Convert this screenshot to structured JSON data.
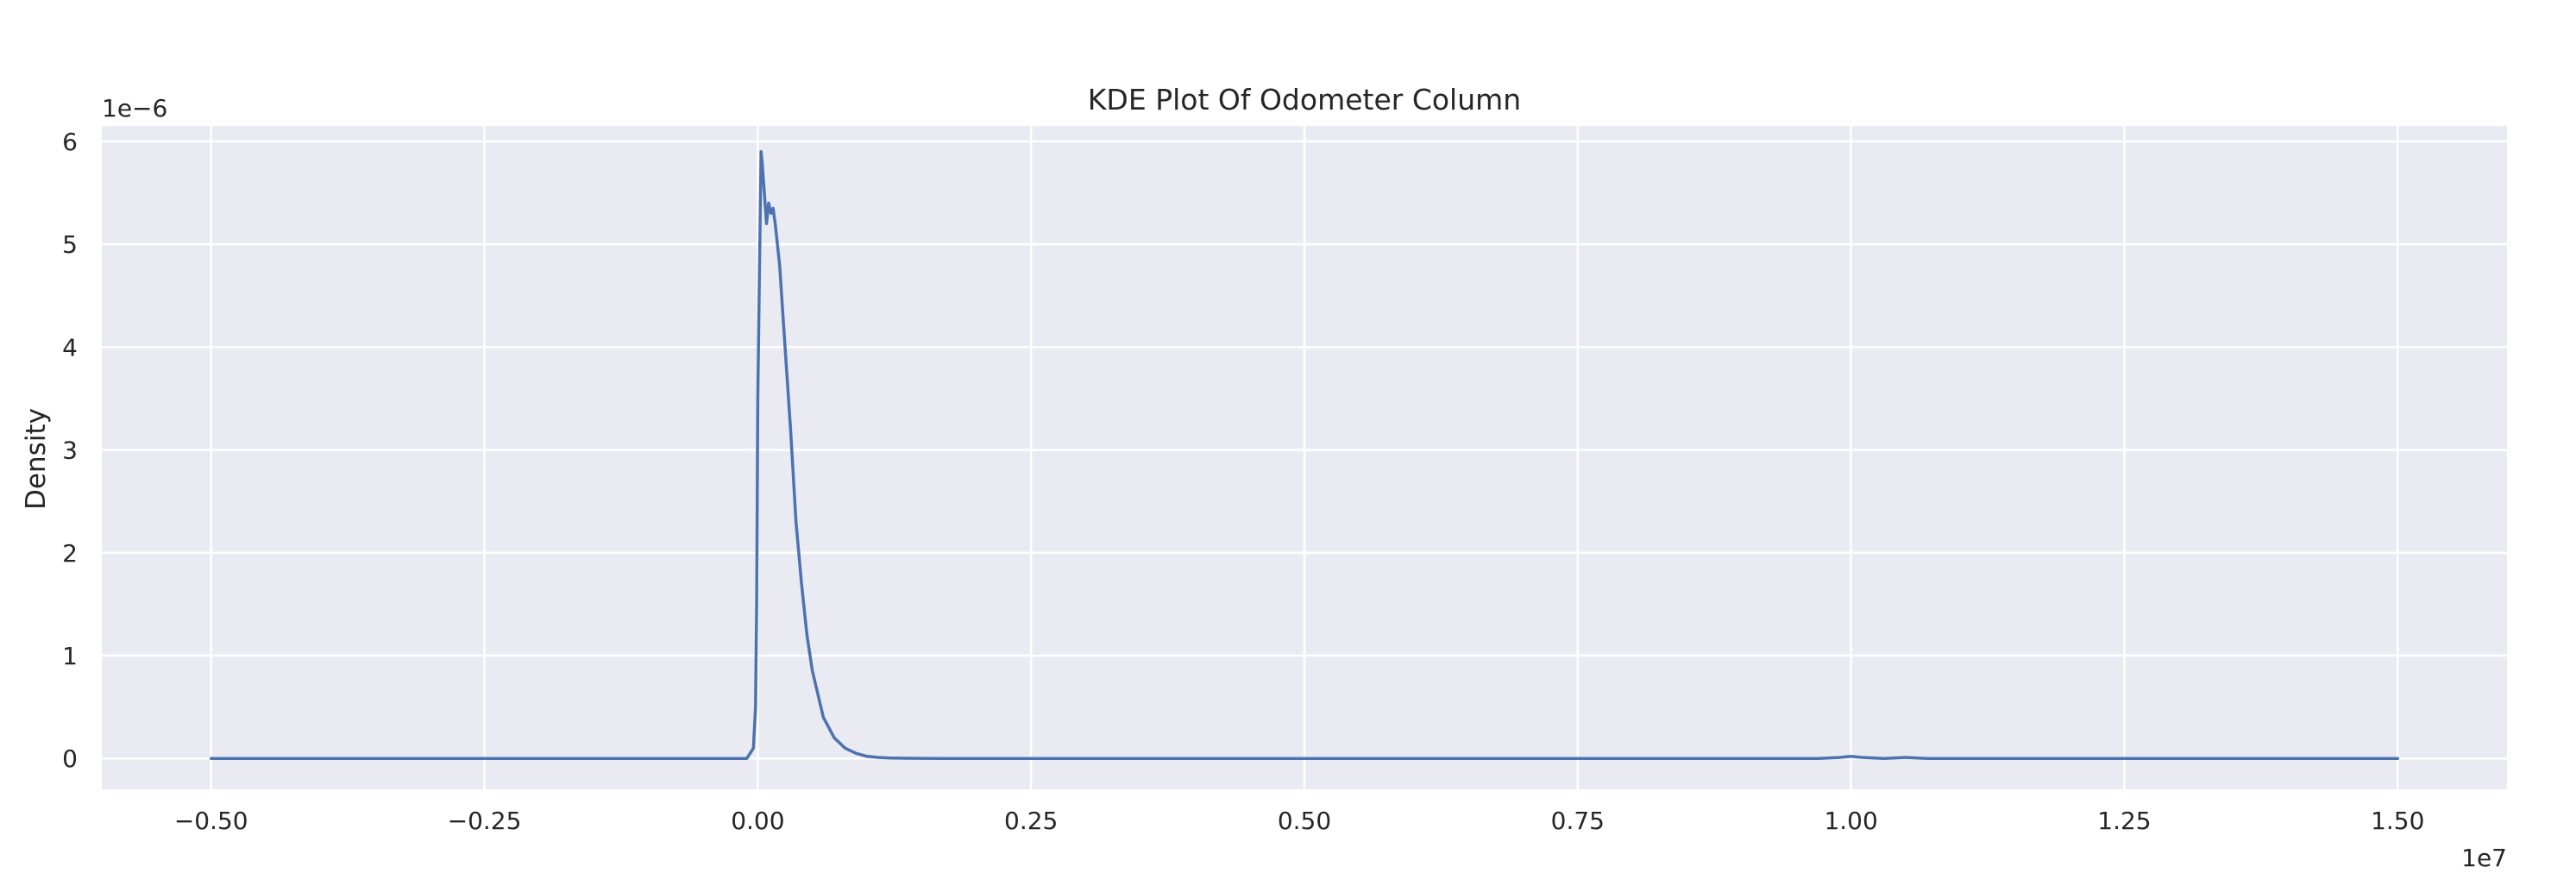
{
  "chart_data": {
    "type": "line",
    "title": "KDE Plot Of Odometer Column",
    "xlabel": "",
    "ylabel": "Density",
    "x_offset_text": "1e7",
    "y_offset_text": "1e−6",
    "xlim": [
      -0.6,
      1.6
    ],
    "ylim": [
      -0.3,
      6.15
    ],
    "xticks": [
      -0.5,
      -0.25,
      0.0,
      0.25,
      0.5,
      0.75,
      1.0,
      1.25,
      1.5
    ],
    "xtick_labels": [
      "−0.50",
      "−0.25",
      "0.00",
      "0.25",
      "0.50",
      "0.75",
      "1.00",
      "1.25",
      "1.50"
    ],
    "yticks": [
      0,
      1,
      2,
      3,
      4,
      5,
      6
    ],
    "ytick_labels": [
      "0",
      "1",
      "2",
      "3",
      "4",
      "5",
      "6"
    ],
    "grid": true,
    "background": "#eaeaf2",
    "grid_color": "#ffffff",
    "series": [
      {
        "color": "#4c72b0",
        "x": [
          -0.5,
          -0.25,
          -0.01,
          -0.004,
          -0.002,
          -0.001,
          0.0,
          0.002,
          0.003,
          0.004,
          0.006,
          0.008,
          0.01,
          0.012,
          0.014,
          0.016,
          0.02,
          0.025,
          0.03,
          0.035,
          0.04,
          0.045,
          0.05,
          0.06,
          0.07,
          0.08,
          0.09,
          0.1,
          0.11,
          0.12,
          0.13,
          0.14,
          0.15,
          0.17,
          0.2,
          0.25,
          0.5,
          0.97,
          0.99,
          1.0,
          1.01,
          1.03,
          1.05,
          1.07,
          1.1,
          1.25,
          1.5
        ],
        "y": [
          0.0,
          0.0,
          0.0,
          0.1,
          0.5,
          1.5,
          3.5,
          5.1,
          5.9,
          5.8,
          5.5,
          5.2,
          5.4,
          5.3,
          5.35,
          5.2,
          4.8,
          4.0,
          3.2,
          2.3,
          1.7,
          1.2,
          0.85,
          0.4,
          0.2,
          0.1,
          0.05,
          0.02,
          0.01,
          0.005,
          0.003,
          0.002,
          0.001,
          0.0,
          0.0,
          0.0,
          0.0,
          0.0,
          0.01,
          0.02,
          0.01,
          0.0,
          0.01,
          0.0,
          0.0,
          0.0,
          0.0
        ]
      }
    ]
  }
}
